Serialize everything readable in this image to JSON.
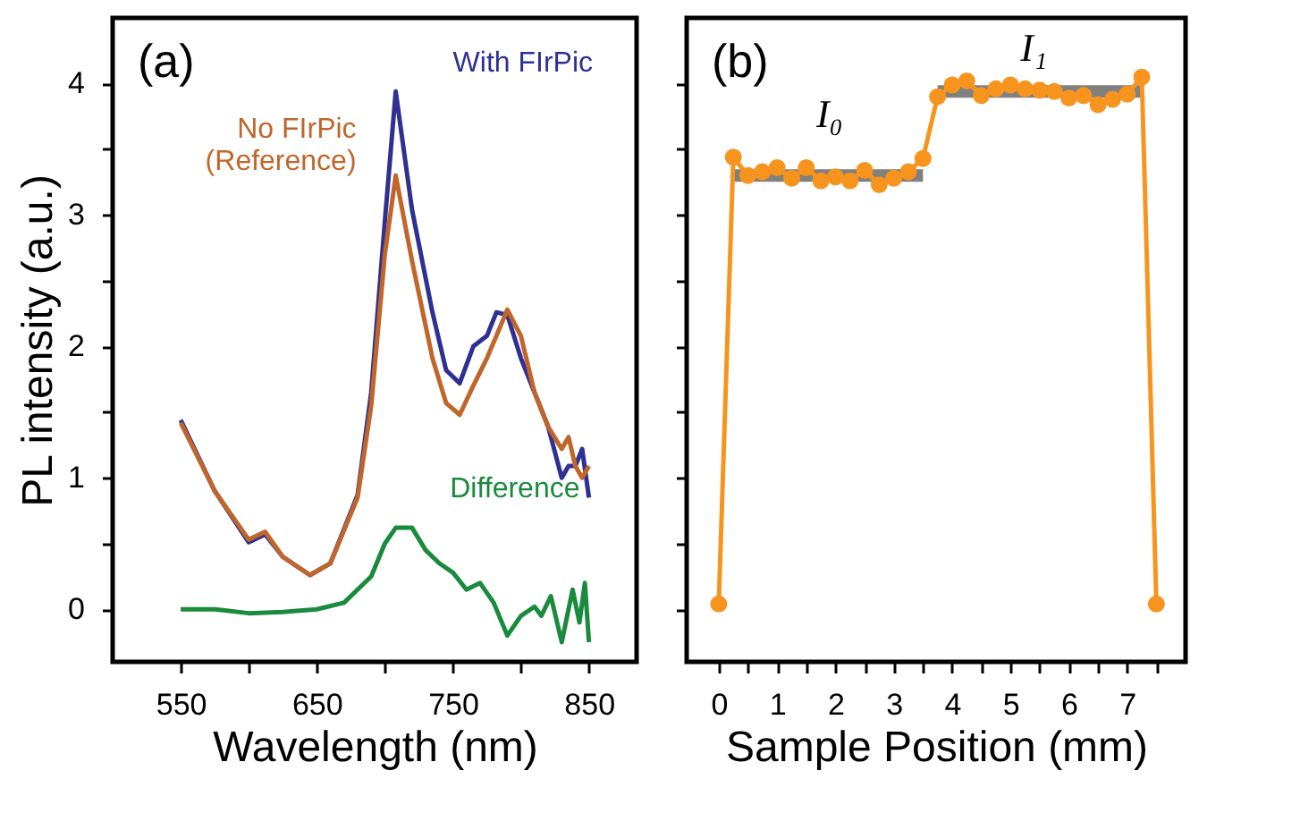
{
  "chart_data": [
    {
      "type": "line",
      "xlabel": "Wavelength (nm)",
      "ylabel": "PL intensity (a.u.)",
      "xlim": [
        500,
        885
      ],
      "ylim": [
        -0.4,
        4.5
      ],
      "xticks": [
        550,
        {
          "value": 600,
          "label": null
        },
        650,
        {
          "value": 700,
          "label": null
        },
        750,
        {
          "value": 800,
          "label": null
        },
        850
      ],
      "yticks": [
        0,
        {
          "value": 0.5,
          "label": null
        },
        1,
        {
          "value": 1.5,
          "label": null
        },
        2,
        {
          "value": 2.5,
          "label": null
        },
        3,
        {
          "value": 3.5,
          "label": null
        },
        4
      ],
      "marker": "none",
      "line_style": "solid",
      "series": [
        {
          "color": "#2e3192",
          "x": [
            550,
            575,
            600,
            612,
            625,
            645,
            660,
            680,
            690,
            700,
            708,
            720,
            735,
            745,
            755,
            765,
            775,
            782,
            790,
            800,
            810,
            820,
            830,
            835,
            840,
            845,
            850
          ],
          "values": [
            1.44,
            0.9,
            0.51,
            0.57,
            0.4,
            0.26,
            0.35,
            0.87,
            1.65,
            2.95,
            3.94,
            3.04,
            2.26,
            1.82,
            1.72,
            2.0,
            2.08,
            2.26,
            2.24,
            1.91,
            1.65,
            1.39,
            1.0,
            1.09,
            1.09,
            1.22,
            0.85
          ]
        },
        {
          "color": "#c0662b",
          "x": [
            550,
            575,
            600,
            612,
            625,
            645,
            660,
            680,
            690,
            700,
            708,
            720,
            735,
            745,
            755,
            765,
            775,
            782,
            790,
            800,
            810,
            820,
            830,
            835,
            840,
            845,
            850
          ],
          "values": [
            1.42,
            0.9,
            0.53,
            0.59,
            0.4,
            0.26,
            0.35,
            0.85,
            1.55,
            2.7,
            3.3,
            2.65,
            1.91,
            1.57,
            1.48,
            1.7,
            1.91,
            2.08,
            2.28,
            2.08,
            1.65,
            1.39,
            1.22,
            1.31,
            1.09,
            1.0,
            1.09
          ]
        },
        {
          "color": "#1a8a3c",
          "x": [
            550,
            575,
            600,
            625,
            650,
            670,
            690,
            700,
            708,
            720,
            730,
            740,
            750,
            760,
            770,
            780,
            790,
            800,
            810,
            815,
            822,
            830,
            838,
            843,
            847,
            850
          ],
          "values": [
            0,
            0,
            -0.03,
            -0.02,
            0,
            0.05,
            0.25,
            0.5,
            0.62,
            0.62,
            0.45,
            0.35,
            0.28,
            0.15,
            0.2,
            0.05,
            -0.2,
            -0.05,
            0.02,
            -0.05,
            0.1,
            -0.25,
            0.15,
            -0.1,
            0.2,
            -0.25
          ]
        }
      ],
      "annotations": [
        "(a)",
        {
          "text": "With FIrPic",
          "x": 708,
          "y": 3.94
        },
        {
          "text": "No FIrPic\n(Reference)",
          "x": 708,
          "y": 3.3
        },
        {
          "text": "Difference",
          "x": 715,
          "y": 0.62
        }
      ]
    },
    {
      "type": "line",
      "xlabel": "Sample Position (mm)",
      "xlim": [
        -0.55,
        8.0
      ],
      "ylim": [
        -0.4,
        4.5
      ],
      "tick_labels": "x",
      "xticks": [
        0,
        {
          "value": 0.5,
          "label": null
        },
        1,
        {
          "value": 1.5,
          "label": null
        },
        2,
        {
          "value": 2.5,
          "label": null
        },
        3,
        {
          "value": 3.5,
          "label": null
        },
        4,
        {
          "value": 4.5,
          "label": null
        },
        5,
        {
          "value": 5.5,
          "label": null
        },
        6,
        {
          "value": 6.5,
          "label": null
        },
        7,
        {
          "value": 7.5,
          "label": null
        }
      ],
      "yticks": [
        0,
        0.5,
        1,
        1.5,
        2,
        2.5,
        3,
        3.5,
        4
      ],
      "line_style": "solid",
      "series": [
        {
          "color": "#808080",
          "marker": "none",
          "x": [
            0.25,
            3.5
          ],
          "values": [
            3.3,
            3.3
          ]
        },
        {
          "color": "#808080",
          "marker": "none",
          "x": [
            3.75,
            7.25
          ],
          "values": [
            3.94,
            3.94
          ]
        },
        {
          "color": "#f7941d",
          "marker": "circle",
          "x": [
            0,
            0.25,
            0.5,
            0.75,
            1.0,
            1.25,
            1.5,
            1.75,
            2.0,
            2.25,
            2.5,
            2.75,
            3.0,
            3.25,
            3.5,
            3.75,
            4.0,
            4.25,
            4.5,
            4.75,
            5.0,
            5.25,
            5.5,
            5.75,
            6.0,
            6.25,
            6.5,
            6.75,
            7.0,
            7.25,
            7.5
          ],
          "values": [
            0.04,
            3.44,
            3.3,
            3.33,
            3.36,
            3.28,
            3.36,
            3.26,
            3.29,
            3.26,
            3.34,
            3.23,
            3.28,
            3.33,
            3.43,
            3.9,
            3.99,
            4.02,
            3.91,
            3.96,
            3.99,
            3.96,
            3.95,
            3.94,
            3.89,
            3.91,
            3.84,
            3.88,
            3.92,
            4.05,
            0.04
          ]
        }
      ],
      "annotations": [
        "(b)",
        {
          "text": "I₀",
          "x": 1.9,
          "y": 3.3
        },
        {
          "text": "I₁",
          "x": 5.4,
          "y": 3.94
        }
      ]
    }
  ]
}
